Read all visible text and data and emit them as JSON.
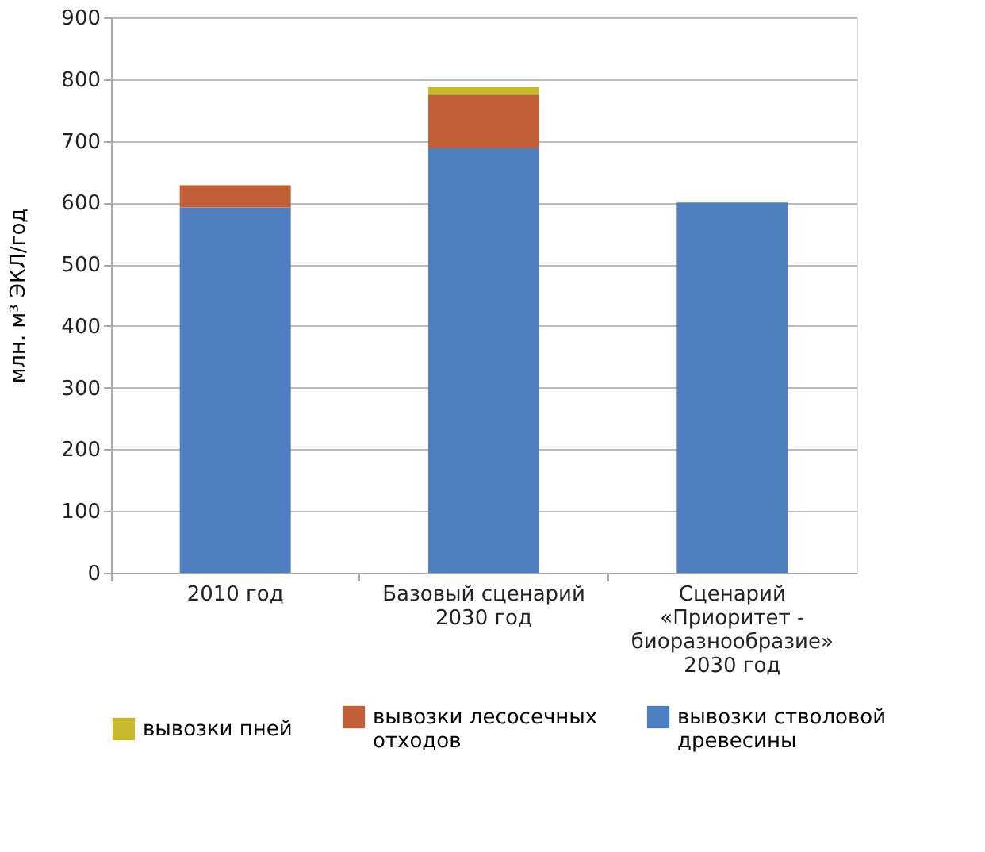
{
  "chart_data": {
    "type": "bar",
    "stacked": true,
    "categories": [
      "2010 год",
      "Базовый сценарий 2030 год",
      "Сценарий «Приоритет - биоразнообразие» 2030 год"
    ],
    "series": [
      {
        "name": "вывозки стволовой древесины",
        "color": "#4f7fc0",
        "values": [
          592,
          688,
          600
        ]
      },
      {
        "name": "вывозки лесосечных отходов",
        "color": "#c16038",
        "values": [
          36,
          87,
          null
        ]
      },
      {
        "name": "вывозки пней",
        "color": "#c8b92a",
        "values": [
          null,
          12,
          null
        ]
      }
    ],
    "ylabel": "млн. м³ ЭКЛ/год",
    "ylim": [
      0,
      900
    ],
    "yticks": [
      0,
      100,
      200,
      300,
      400,
      500,
      600,
      700,
      800,
      900
    ],
    "grid": "y",
    "legend": "bottom"
  }
}
